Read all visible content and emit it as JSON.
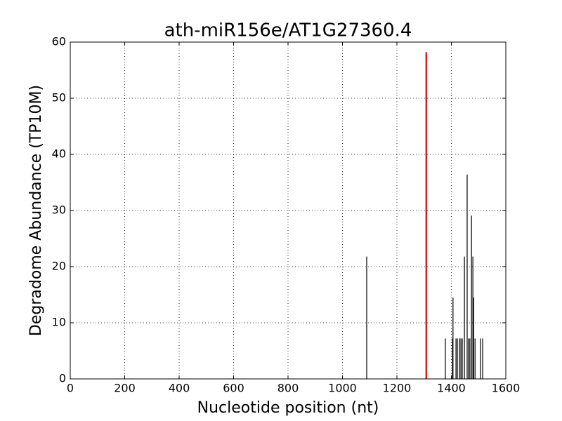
{
  "chart_data": {
    "type": "stem",
    "title": "ath-miR156e/AT1G27360.4",
    "x_label": "Nucleotide position (nt)",
    "y_label": "Degradome Abundance (TP10M)",
    "xlim": [
      0,
      1600
    ],
    "xticks": [
      0,
      200,
      400,
      600,
      800,
      1000,
      1200,
      1400,
      1600
    ],
    "ylim": [
      0,
      60
    ],
    "yticks": [
      0,
      10,
      20,
      30,
      40,
      50,
      60
    ],
    "grid": true,
    "series": [
      {
        "color": "#000000",
        "x": [
          1089,
          1378,
          1404,
          1406,
          1417,
          1422,
          1430,
          1435,
          1440,
          1448,
          1458,
          1463,
          1468,
          1474,
          1479,
          1482,
          1487,
          1507,
          1515
        ],
        "values": [
          21.8,
          7.2,
          7.2,
          14.5,
          7.2,
          7.2,
          7.2,
          7.2,
          7.2,
          21.8,
          36.4,
          7.2,
          7.2,
          29.1,
          21.8,
          14.5,
          7.2,
          7.2,
          7.2
        ]
      },
      {
        "color": "#d62020",
        "width": 2.5,
        "x": [
          1308
        ],
        "values": [
          58.2
        ]
      }
    ]
  }
}
